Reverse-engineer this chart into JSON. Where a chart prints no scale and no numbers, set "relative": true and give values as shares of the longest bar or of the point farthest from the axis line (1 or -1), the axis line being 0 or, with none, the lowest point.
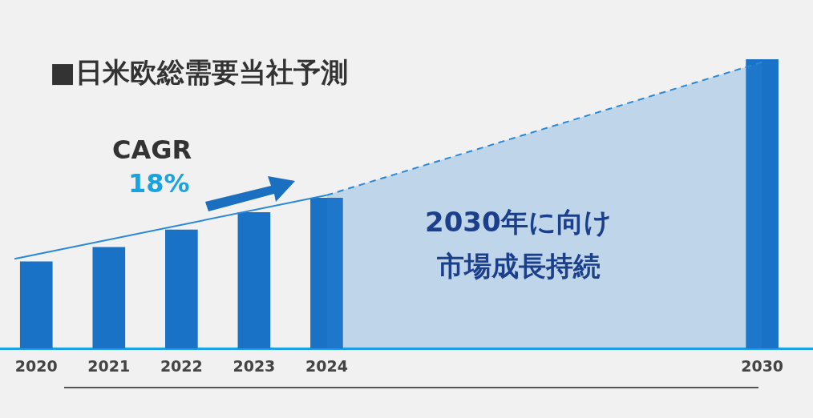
{
  "chart_data": {
    "type": "bar",
    "title": "■日米欧総需要当社予測",
    "relative": true,
    "x": [
      2020,
      2021,
      2022,
      2023,
      2024,
      2030
    ],
    "xlim": [
      2019.5,
      2030.7
    ],
    "xticks": [
      2020,
      2021,
      2022,
      2023,
      2024,
      2030
    ],
    "grid": false,
    "legend": false,
    "series": [
      {
        "color": "#1a72c6",
        "values": [
          0.3,
          0.35,
          0.41,
          0.47,
          0.52,
          1
        ]
      },
      {
        "type": "line",
        "color": "#2a88d8",
        "x": [
          2019.7,
          2024
        ],
        "values": [
          0.31,
          0.53
        ],
        "line_style": "solid"
      },
      {
        "type": "area",
        "color": "#2a88d8",
        "x": [
          2024,
          2030
        ],
        "values": [
          0.53,
          0.99
        ],
        "line_style": "dashed"
      }
    ],
    "annotations": [
      "CAGR",
      "18%",
      "2030年に向け",
      "市場成長持続"
    ]
  }
}
